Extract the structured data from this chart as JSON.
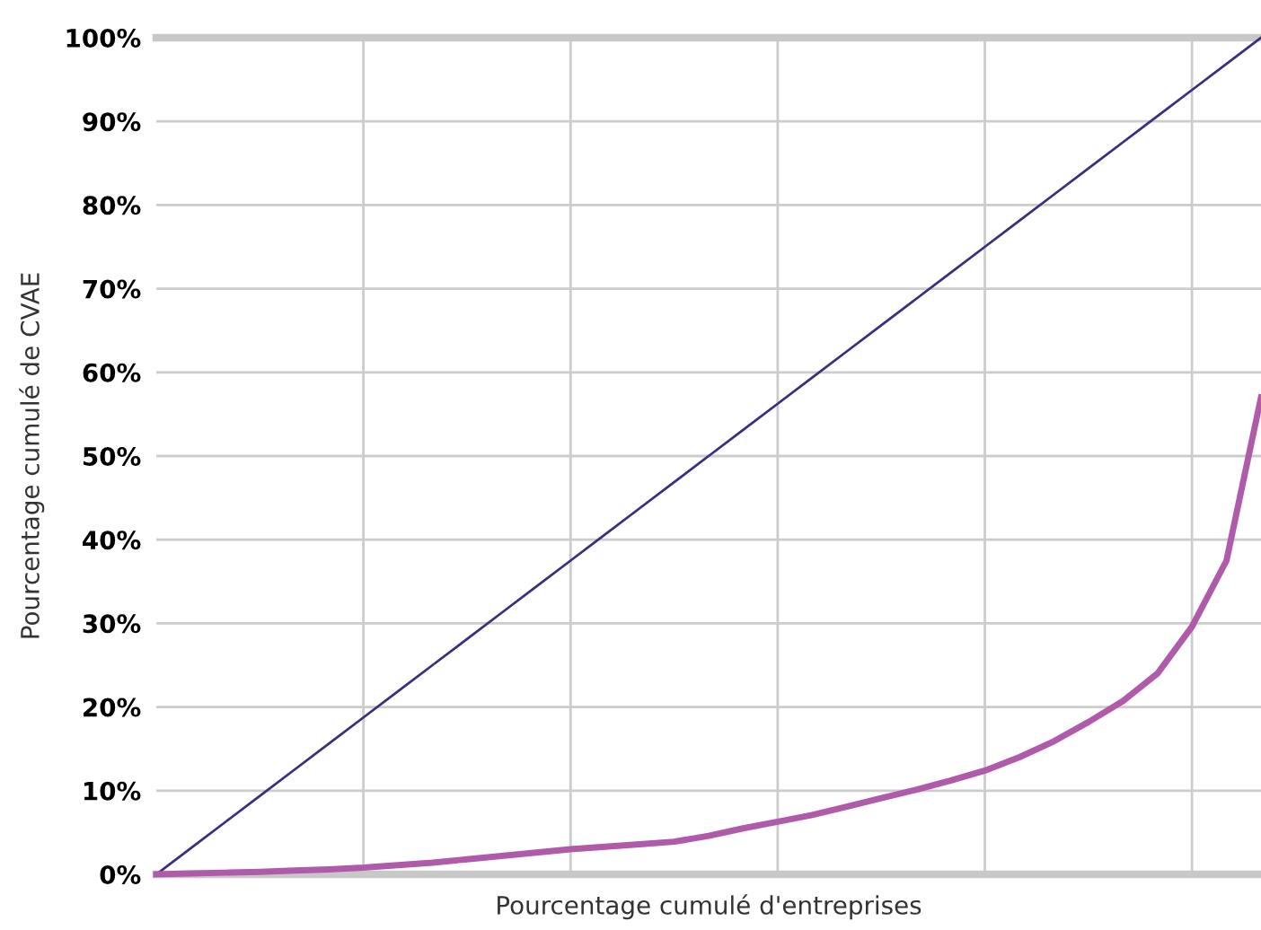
{
  "chart_data": {
    "type": "line",
    "xlabel": "Pourcentage cumulé d'entreprises",
    "ylabel": "Pourcentage cumulé de CVAE",
    "categories": [
      null,
      null,
      null,
      null,
      null,
      null,
      null,
      null,
      null,
      null,
      null,
      null,
      null,
      null,
      null,
      null,
      null,
      null,
      null,
      null,
      null,
      null,
      null,
      null,
      null,
      null,
      null,
      null,
      null,
      null,
      null,
      null,
      null
    ],
    "ylim": [
      0,
      100
    ],
    "yticks": [
      {
        "value": 0,
        "label": "0%"
      },
      {
        "value": 10,
        "label": "10%"
      },
      {
        "value": 20,
        "label": "20%"
      },
      {
        "value": 30,
        "label": "30%"
      },
      {
        "value": 40,
        "label": "40%"
      },
      {
        "value": 50,
        "label": "50%"
      },
      {
        "value": 60,
        "label": "60%"
      },
      {
        "value": 70,
        "label": "70%"
      },
      {
        "value": 80,
        "label": "80%"
      },
      {
        "value": 90,
        "label": "90%"
      },
      {
        "value": 100,
        "label": "100%"
      }
    ],
    "tick_labels": "y",
    "grid": true,
    "marker": "none",
    "line_style": "solid",
    "series": [
      {
        "color": "#3b2e7e",
        "values": [
          0,
          3.125,
          6.25,
          9.375,
          12.5,
          15.625,
          18.75,
          21.875,
          25,
          28.125,
          31.25,
          34.375,
          37.5,
          40.625,
          43.75,
          46.875,
          50,
          53.125,
          56.25,
          59.375,
          62.5,
          65.625,
          68.75,
          71.875,
          75,
          78.125,
          81.25,
          84.375,
          87.5,
          90.625,
          93.75,
          96.875,
          100
        ]
      },
      {
        "color": "#b05aaa",
        "values": [
          0,
          0.1,
          0.2,
          0.3,
          0.45,
          0.6,
          0.8,
          1.1,
          1.4,
          1.8,
          2.2,
          2.6,
          3.0,
          3.3,
          3.6,
          3.9,
          4.6,
          5.5,
          6.3,
          7.1,
          8.1,
          9.1,
          10.1,
          11.2,
          12.4,
          14,
          15.9,
          18.2,
          20.7,
          24,
          29.6,
          37.5,
          57
        ]
      }
    ]
  }
}
